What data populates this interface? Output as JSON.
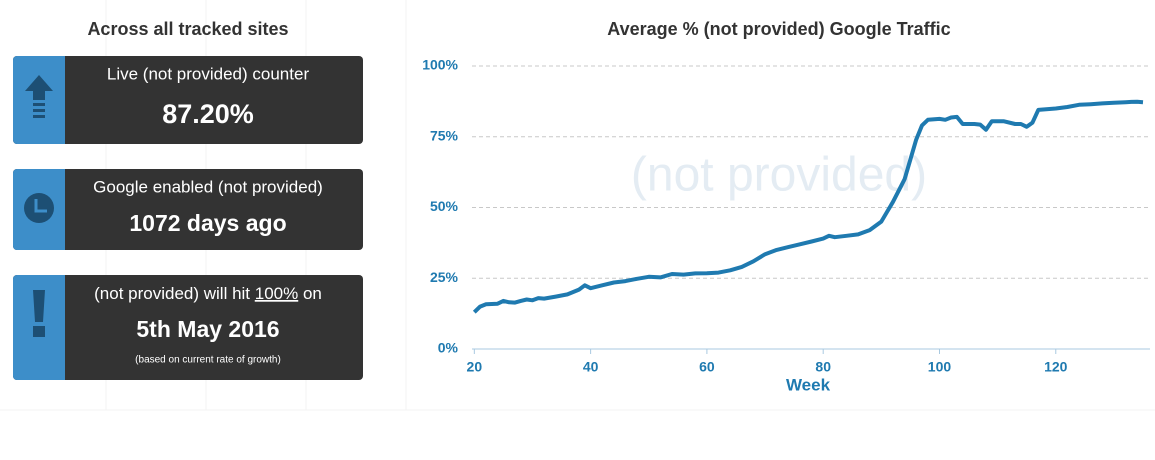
{
  "left": {
    "heading": "Across all tracked sites",
    "panels": [
      {
        "title": "Live (not provided) counter",
        "value": "87.20%"
      },
      {
        "title": "Google enabled (not provided)",
        "value": "1072 days ago"
      },
      {
        "title_parts": [
          "(not provided) will hit ",
          "100%",
          " on"
        ],
        "value": "5th May 2016",
        "note": "(based on current rate of growth)"
      }
    ]
  },
  "chart_data": {
    "type": "line",
    "title": "Average % (not provided) Google Traffic",
    "watermark": "(not provided)",
    "x_label": "Week",
    "color": "#1f7ab0",
    "grid": true,
    "x": [
      20,
      21,
      22,
      24,
      25,
      26,
      27,
      28,
      29,
      30,
      31,
      32,
      34,
      36,
      38,
      39,
      40,
      42,
      44,
      46,
      48,
      50,
      52,
      54,
      56,
      58,
      60,
      62,
      64,
      66,
      68,
      70,
      72,
      74,
      76,
      78,
      80,
      81,
      82,
      84,
      86,
      88,
      90,
      92,
      94,
      95,
      96,
      97,
      98,
      100,
      101,
      102,
      103,
      104,
      106,
      107,
      108,
      109,
      111,
      113,
      114,
      115,
      116,
      117,
      120,
      122,
      124,
      126,
      128,
      130,
      132,
      133,
      134,
      135
    ],
    "values": [
      13,
      15,
      15.8,
      16,
      17,
      16.5,
      16.4,
      17,
      17.5,
      17.2,
      18,
      17.8,
      18.5,
      19.3,
      21,
      22.5,
      21.5,
      22.5,
      23.5,
      24,
      24.8,
      25.5,
      25.3,
      26.5,
      26.3,
      26.7,
      26.8,
      27,
      27.8,
      29,
      31,
      33.5,
      35,
      36,
      37,
      38,
      39,
      40,
      39.5,
      40,
      40.5,
      42,
      45,
      52,
      60,
      67,
      74,
      79,
      81,
      81.3,
      81,
      81.8,
      82,
      79.5,
      79.5,
      79.3,
      77.5,
      80.5,
      80.5,
      79.5,
      79.5,
      78.5,
      80,
      84.5,
      85,
      85.5,
      86.3,
      86.5,
      86.8,
      87,
      87.2,
      87.3,
      87.4,
      87.2
    ],
    "xlim": [
      19.6,
      135
    ],
    "ylim": [
      0,
      100
    ],
    "xticks": [
      20,
      40,
      60,
      80,
      100,
      120
    ],
    "yticks": [
      {
        "value": 0,
        "label": "0%"
      },
      {
        "value": 25,
        "label": "25%"
      },
      {
        "value": 50,
        "label": "50%"
      },
      {
        "value": 75,
        "label": "75%"
      },
      {
        "value": 100,
        "label": "100%"
      }
    ]
  }
}
